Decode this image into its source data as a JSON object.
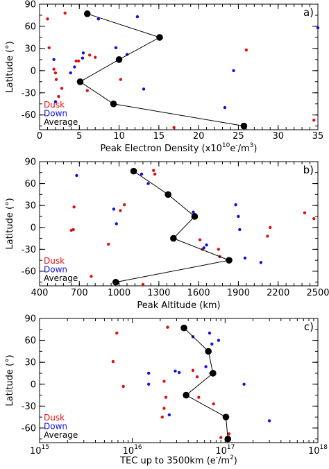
{
  "colors": {
    "dusk": "#dd1111",
    "down": "#1111dd",
    "average": "#000000",
    "axis": "#000000"
  },
  "chart_data": [
    {
      "panel": "a)",
      "type": "scatter",
      "xlabel": "Peak Electron Density (x10",
      "xlabel_sup1": "10",
      "xlabel_mid": "e",
      "xlabel_sup2": "-",
      "xlabel_end": "/m",
      "xlabel_sup3": "3",
      "xlabel_close": ")",
      "ylabel": "Latitude (°)",
      "xscale": "linear",
      "xlim": [
        0,
        35
      ],
      "ylim": [
        -80,
        90
      ],
      "xticks": [
        0,
        5,
        10,
        15,
        20,
        25,
        30,
        35
      ],
      "xtick_labels": [
        "0",
        "5",
        "10",
        "15",
        "20",
        "25",
        "30",
        "35"
      ],
      "yticks": [
        90,
        60,
        30,
        0,
        -30,
        -60
      ],
      "ytick_labels": [
        "90",
        "60",
        "30",
        "0",
        "-30",
        "-60"
      ],
      "legend": {
        "position": "bottom-left",
        "entries": [
          "Dusk",
          "Down",
          "Average"
        ]
      },
      "series": [
        {
          "name": "Dusk",
          "color": "#dd1111",
          "points": [
            [
              1.0,
              70
            ],
            [
              3.2,
              78
            ],
            [
              1.2,
              31
            ],
            [
              1.8,
              2
            ],
            [
              2.0,
              -3
            ],
            [
              2.1,
              -12
            ],
            [
              2.8,
              -24
            ],
            [
              2.4,
              -35
            ],
            [
              4.6,
              13
            ],
            [
              4.9,
              13
            ],
            [
              6.3,
              21
            ],
            [
              7.0,
              18
            ],
            [
              6.0,
              -27
            ],
            [
              10.2,
              -12
            ],
            [
              26.0,
              28
            ],
            [
              16.9,
              -77
            ],
            [
              34.5,
              -67
            ]
          ]
        },
        {
          "name": "Down",
          "color": "#1111dd",
          "points": [
            [
              1.8,
              15
            ],
            [
              2.0,
              -42
            ],
            [
              3.9,
              -3
            ],
            [
              4.4,
              5
            ],
            [
              5.4,
              17
            ],
            [
              5.5,
              24
            ],
            [
              7.4,
              70
            ],
            [
              9.6,
              31
            ],
            [
              11.0,
              22
            ],
            [
              12.3,
              73
            ],
            [
              13.1,
              -25
            ],
            [
              24.4,
              0
            ],
            [
              23.3,
              -50
            ],
            [
              35.0,
              58
            ]
          ]
        },
        {
          "name": "Average",
          "color": "#000000",
          "line": true,
          "points": [
            [
              6.0,
              77
            ],
            [
              15.1,
              45
            ],
            [
              10.0,
              15
            ],
            [
              5.1,
              -15
            ],
            [
              9.3,
              -45
            ],
            [
              25.7,
              -75
            ]
          ]
        }
      ]
    },
    {
      "panel": "b)",
      "type": "scatter",
      "xlabel": "Peak Altitude (km)",
      "ylabel": "Latitude (°)",
      "xscale": "linear",
      "xlim": [
        400,
        2500
      ],
      "ylim": [
        -80,
        90
      ],
      "xticks": [
        400,
        700,
        1000,
        1300,
        1600,
        1900,
        2200,
        2500
      ],
      "xtick_labels": [
        "400",
        "700",
        "1000",
        "1300",
        "1600",
        "1900",
        "2200",
        "2500"
      ],
      "yticks": [
        90,
        60,
        30,
        0,
        -30,
        -60
      ],
      "ytick_labels": [
        "90",
        "60",
        "30",
        "0",
        "-30",
        "-60"
      ],
      "legend": {
        "position": "bottom-left",
        "entries": [
          "Dusk",
          "Down",
          "Average"
        ]
      },
      "series": [
        {
          "name": "Dusk",
          "color": "#dd1111",
          "points": [
            [
              660,
              28
            ],
            [
              655,
              -3
            ],
            [
              640,
              -4
            ],
            [
              790,
              -67
            ],
            [
              920,
              -23
            ],
            [
              1040,
              31
            ],
            [
              1010,
              23
            ],
            [
              1260,
              78
            ],
            [
              1270,
              73
            ],
            [
              1180,
              -78
            ],
            [
              1610,
              -17
            ],
            [
              1630,
              -30
            ],
            [
              1750,
              -30
            ],
            [
              1760,
              -40
            ],
            [
              2140,
              0
            ],
            [
              2120,
              -12
            ],
            [
              2400,
              20
            ],
            [
              2470,
              12
            ]
          ]
        },
        {
          "name": "Down",
          "color": "#1111dd",
          "points": [
            [
              680,
              71
            ],
            [
              960,
              25
            ],
            [
              980,
              5
            ],
            [
              1170,
              73
            ],
            [
              1220,
              60
            ],
            [
              1560,
              21
            ],
            [
              1640,
              -28
            ],
            [
              1660,
              -24
            ],
            [
              1880,
              31
            ],
            [
              1900,
              15
            ],
            [
              1910,
              -3
            ],
            [
              1950,
              -42
            ],
            [
              2070,
              -48
            ]
          ]
        },
        {
          "name": "Average",
          "color": "#000000",
          "line": true,
          "points": [
            [
              1110,
              77
            ],
            [
              1370,
              45
            ],
            [
              1570,
              15
            ],
            [
              1410,
              -15
            ],
            [
              1830,
              -45
            ],
            [
              975,
              -75
            ]
          ]
        }
      ]
    },
    {
      "panel": "c)",
      "type": "scatter",
      "xlabel": "TEC up to 3500km (e",
      "xlabel_sup1": "-",
      "xlabel_mid": "/m",
      "xlabel_sup2": "2",
      "xlabel_end": ")",
      "ylabel": "Latitude (°)",
      "xscale": "log",
      "xlim": [
        1000000000000000.0,
        1e+18
      ],
      "ylim": [
        -80,
        90
      ],
      "xticks": [
        1000000000000000.0,
        1e+16,
        1e+17,
        1e+18
      ],
      "xtick_labels": [
        [
          "10",
          "15"
        ],
        [
          "10",
          "16"
        ],
        [
          "10",
          "17"
        ],
        [
          "10",
          "18"
        ]
      ],
      "yticks": [
        90,
        60,
        30,
        0,
        -30,
        -60
      ],
      "ytick_labels": [
        "90",
        "60",
        "30",
        "0",
        "-30",
        "-60"
      ],
      "legend": {
        "position": "bottom-left",
        "entries": [
          "Dusk",
          "Down",
          "Average"
        ]
      },
      "series": [
        {
          "name": "Dusk",
          "color": "#dd1111",
          "points": [
            [
              6800000000000000.0,
              70
            ],
            [
              6200000000000000.0,
              31
            ],
            [
              8000000000000000.0,
              -3
            ],
            [
              2.4e+16,
              78
            ],
            [
              2.2e+16,
              4
            ],
            [
              2.3e+16,
              -18
            ],
            [
              2.2e+16,
              -33
            ],
            [
              2.1e+16,
              -45
            ],
            [
              4.5e+16,
              19
            ],
            [
              3.7e+16,
              -13
            ],
            [
              5e+16,
              10
            ],
            [
              5.2e+16,
              -18
            ],
            [
              7.5e+16,
              -27
            ],
            [
              1.1e+17,
              -68
            ],
            [
              9e+16,
              -73
            ]
          ]
        },
        {
          "name": "Down",
          "color": "#1111dd",
          "points": [
            [
              1.5e+16,
              15
            ],
            [
              1.5e+16,
              0
            ],
            [
              2.5e+16,
              -42
            ],
            [
              3.2e+16,
              16
            ],
            [
              2.9e+16,
              18
            ],
            [
              4.5e+16,
              65
            ],
            [
              6.8e+16,
              70
            ],
            [
              8.5e+16,
              60
            ],
            [
              7.2e+16,
              55
            ],
            [
              6.2e+16,
              24
            ],
            [
              7e+16,
              15
            ],
            [
              1.6e+17,
              0
            ],
            [
              3e+17,
              -50
            ]
          ]
        },
        {
          "name": "Average",
          "color": "#000000",
          "line": true,
          "points": [
            [
              3.6e+16,
              77
            ],
            [
              6.6e+16,
              45
            ],
            [
              7.4e+16,
              15
            ],
            [
              3.8e+16,
              -15
            ],
            [
              1.02e+17,
              -45
            ],
            [
              1.07e+17,
              -75
            ]
          ]
        }
      ]
    }
  ]
}
